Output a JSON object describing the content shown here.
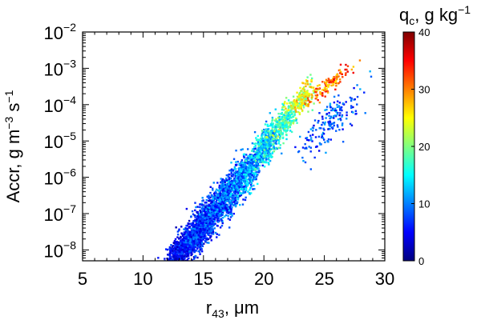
{
  "chart_data": {
    "type": "scatter",
    "title": "",
    "xlabel": {
      "main": "r",
      "sub": "43",
      "unit": ",  μm"
    },
    "ylabel": {
      "main": "Accr,  g m",
      "exp1": "−3",
      "mid": " s",
      "exp2": "−1"
    },
    "xlim": [
      5,
      30
    ],
    "ylim_log10": [
      -8.3,
      -2
    ],
    "y_scale": "log",
    "x_ticks": [
      {
        "value": 5,
        "label": "5"
      },
      {
        "value": 10,
        "label": "10"
      },
      {
        "value": 15,
        "label": "15"
      },
      {
        "value": 20,
        "label": "20"
      },
      {
        "value": 25,
        "label": "25"
      },
      {
        "value": 30,
        "label": "30"
      }
    ],
    "y_ticks": [
      {
        "exp": -8,
        "base": "10",
        "sup": "−8"
      },
      {
        "exp": -7,
        "base": "10",
        "sup": "−7"
      },
      {
        "exp": -6,
        "base": "10",
        "sup": "−6"
      },
      {
        "exp": -5,
        "base": "10",
        "sup": "−5"
      },
      {
        "exp": -4,
        "base": "10",
        "sup": "−4"
      },
      {
        "exp": -3,
        "base": "10",
        "sup": "−3"
      },
      {
        "exp": -2,
        "base": "10",
        "sup": "−2"
      }
    ],
    "colorbar": {
      "title_main": "q",
      "title_sub": "c",
      "title_unit": ",  g kg",
      "title_exp": "−1",
      "range": [
        0,
        40
      ],
      "ticks": [
        {
          "value": 0,
          "label": "0"
        },
        {
          "value": 10,
          "label": "10"
        },
        {
          "value": 20,
          "label": "20"
        },
        {
          "value": 30,
          "label": "30"
        },
        {
          "value": 40,
          "label": "40"
        }
      ],
      "colormap": "jet"
    },
    "point_clusters": [
      {
        "center": [
          13.5,
          -7.9
        ],
        "spread": [
          1.3,
          0.35
        ],
        "count": 900,
        "c": [
          1,
          8
        ]
      },
      {
        "center": [
          15.2,
          -7.2
        ],
        "spread": [
          1.3,
          0.45
        ],
        "count": 900,
        "c": [
          2,
          11
        ]
      },
      {
        "center": [
          17.0,
          -6.5
        ],
        "spread": [
          1.2,
          0.45
        ],
        "count": 700,
        "c": [
          3,
          13
        ]
      },
      {
        "center": [
          18.7,
          -5.8
        ],
        "spread": [
          1.1,
          0.4
        ],
        "count": 550,
        "c": [
          5,
          16
        ]
      },
      {
        "center": [
          20.2,
          -5.1
        ],
        "spread": [
          0.9,
          0.4
        ],
        "count": 400,
        "c": [
          8,
          20
        ]
      },
      {
        "center": [
          21.8,
          -4.4
        ],
        "spread": [
          0.9,
          0.35
        ],
        "count": 300,
        "c": [
          12,
          24
        ]
      },
      {
        "center": [
          23.2,
          -3.8
        ],
        "spread": [
          0.9,
          0.3
        ],
        "count": 200,
        "c": [
          18,
          30
        ]
      },
      {
        "center": [
          25.5,
          -3.4
        ],
        "spread": [
          1.6,
          0.2
        ],
        "count": 120,
        "c": [
          26,
          37
        ]
      },
      {
        "center": [
          25.5,
          -4.5
        ],
        "spread": [
          2.0,
          0.45
        ],
        "count": 180,
        "c": [
          3,
          12
        ]
      }
    ],
    "grid": false,
    "legend": "colorbar-right"
  }
}
